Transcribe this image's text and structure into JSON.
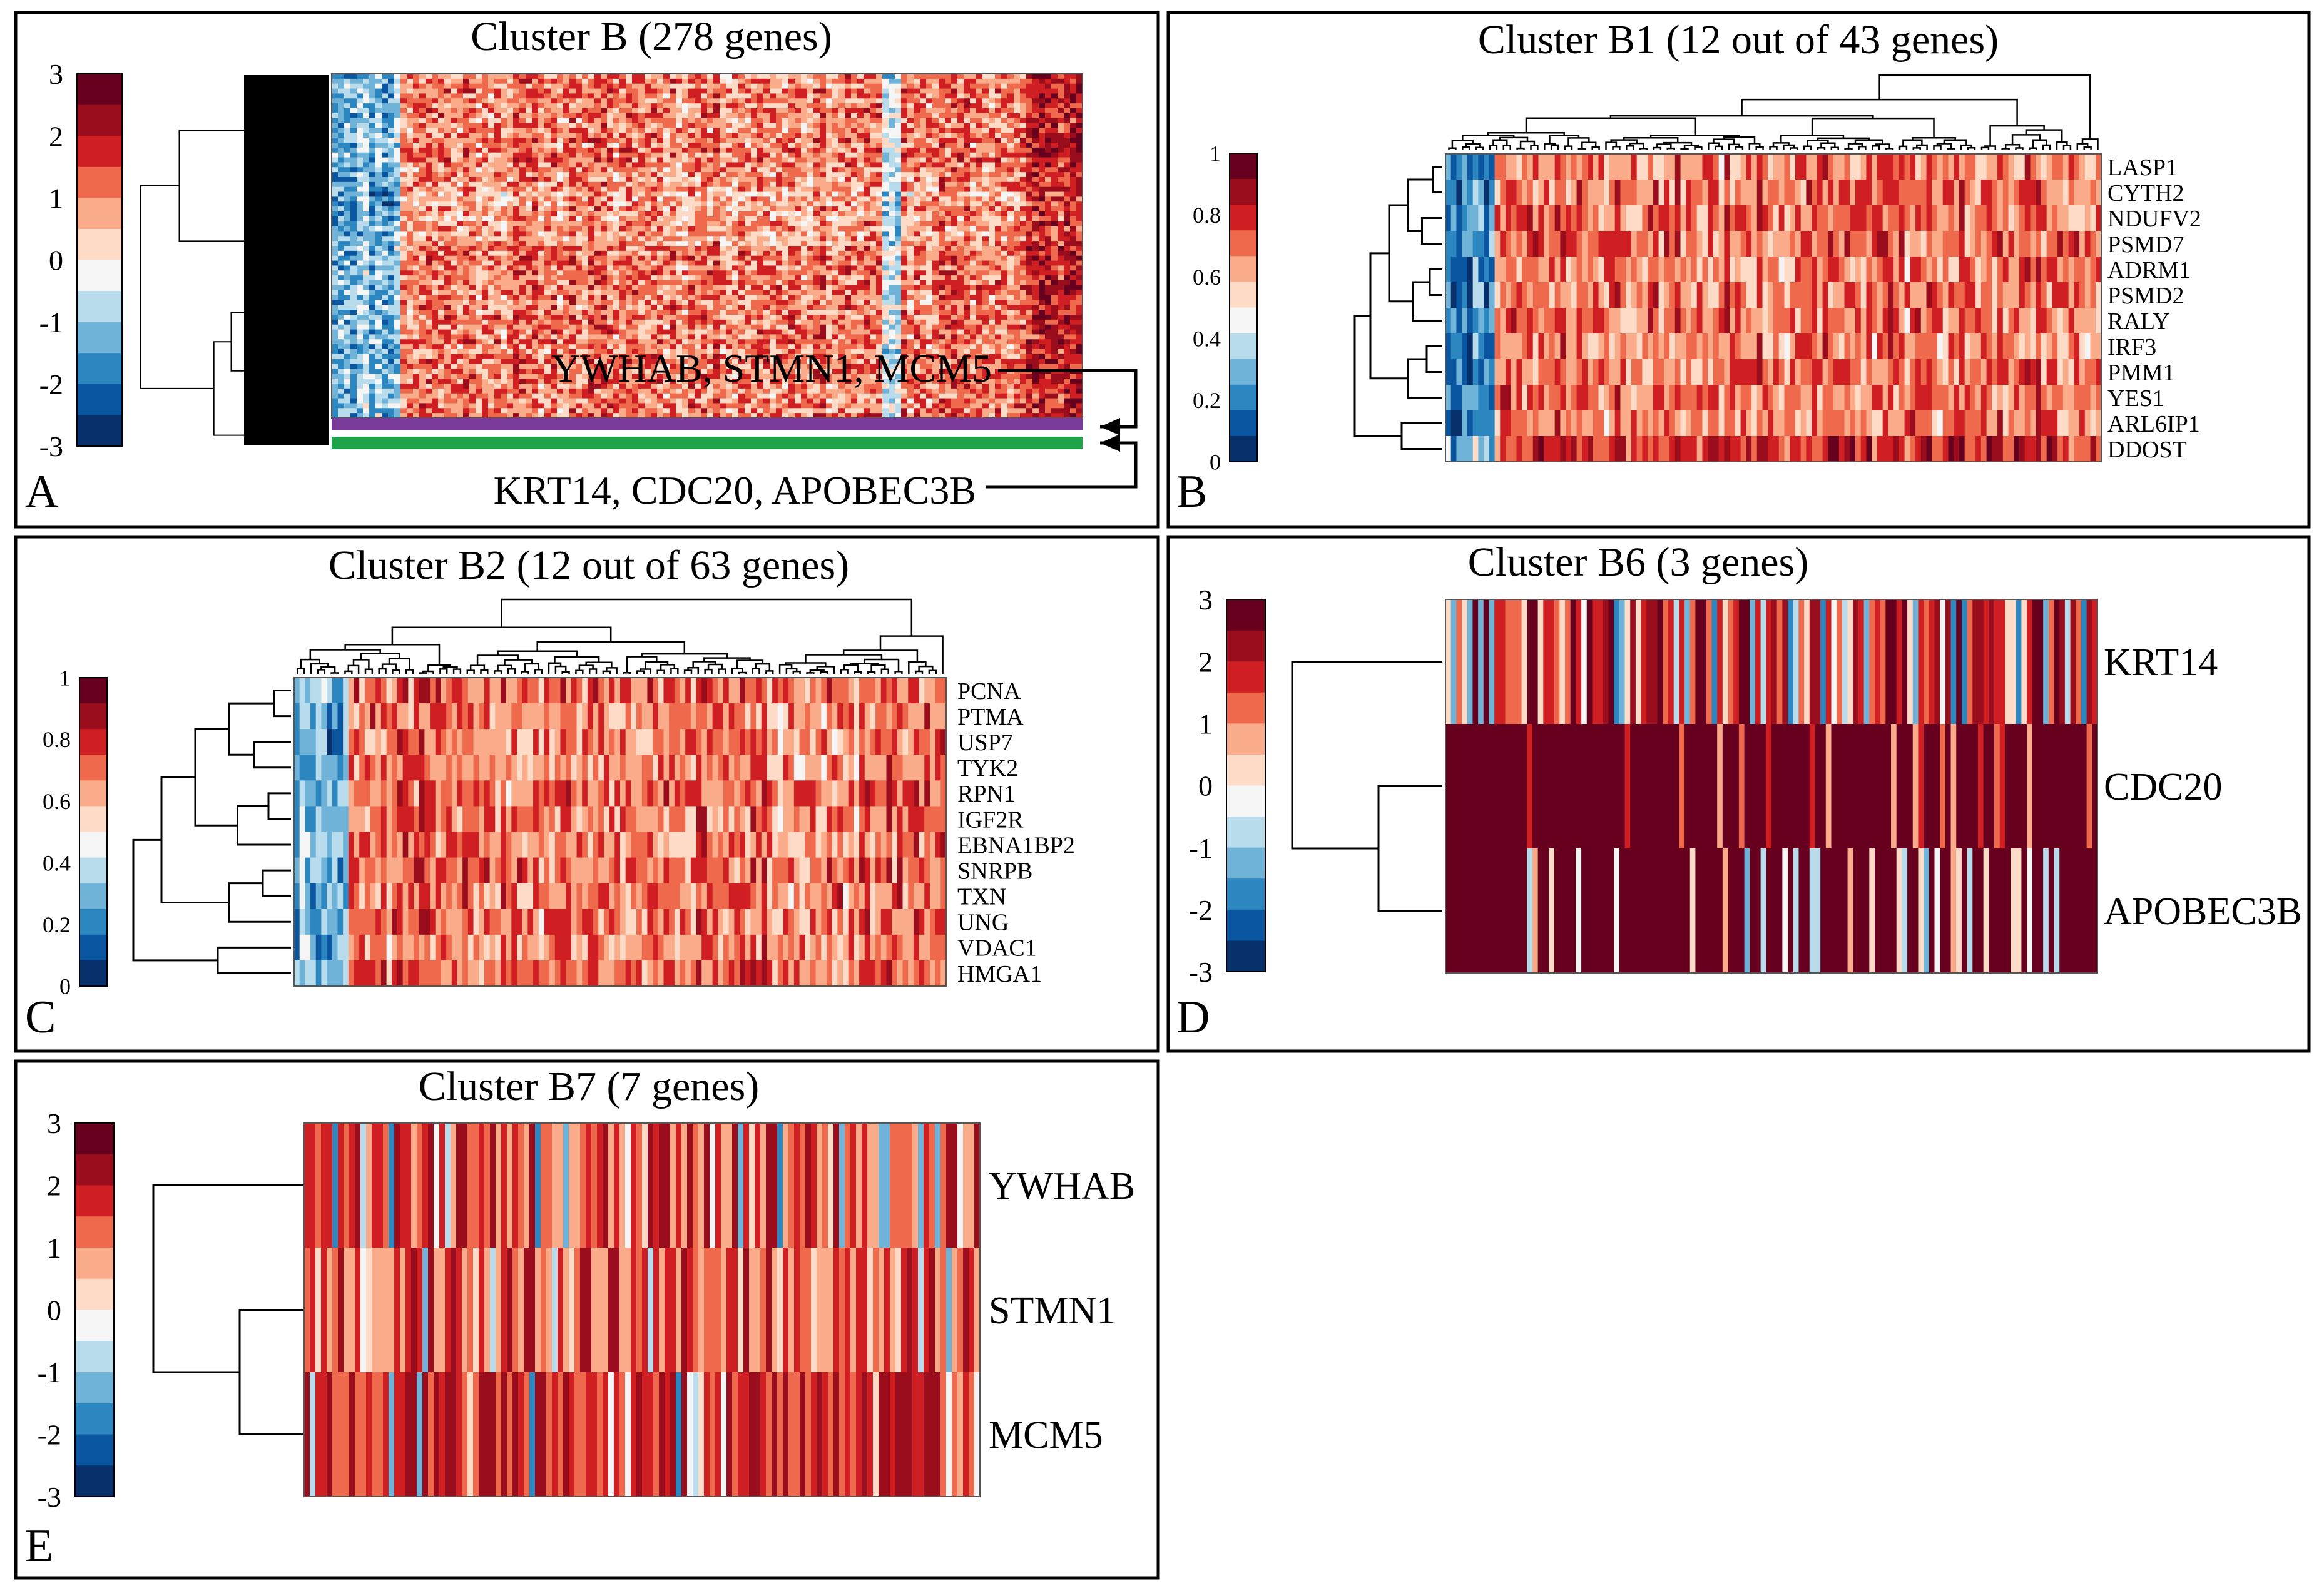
{
  "figure": {
    "background": "#ffffff"
  },
  "colormap": [
    "#08306b",
    "#0a56a0",
    "#2c86c0",
    "#6fb4d8",
    "#b9dcec",
    "#f5f5f5",
    "#fddbc7",
    "#f9ab8a",
    "#ef6a4c",
    "#cf1f22",
    "#9a0d1c",
    "#67001f"
  ],
  "chart_data": [
    {
      "panel": "A",
      "type": "heatmap",
      "title": "Cluster B (278 genes)",
      "colorbar": {
        "min": -3,
        "max": 3,
        "ticks": [
          "3",
          "2",
          "1",
          "0",
          "-1",
          "-2",
          "-3"
        ]
      },
      "rows": 278,
      "columns": 120,
      "row_labels": [],
      "annotations": [
        {
          "label": "YWHAB, STMN1, MCM5",
          "highlight_color": "#7a3b9a",
          "points_to": "Cluster B7"
        },
        {
          "label": "KRT14, CDC20, APOBEC3B",
          "highlight_color": "#1fa34a",
          "points_to": "Cluster B6"
        }
      ]
    },
    {
      "panel": "B",
      "type": "heatmap",
      "title": "Cluster B1 (12 out of 43 genes)",
      "colorbar": {
        "min": 0,
        "max": 1,
        "ticks": [
          "1",
          "0.8",
          "0.6",
          "0.4",
          "0.2",
          "0"
        ]
      },
      "columns": 120,
      "row_labels": [
        "LASP1",
        "CYTH2",
        "NDUFV2",
        "PSMD7",
        "ADRM1",
        "PSMD2",
        "RALY",
        "IRF3",
        "PMM1",
        "YES1",
        "ARL6IP1",
        "DDOST"
      ]
    },
    {
      "panel": "C",
      "type": "heatmap",
      "title": "Cluster B2 (12 out of 63 genes)",
      "colorbar": {
        "min": 0,
        "max": 1,
        "ticks": [
          "1",
          "0.8",
          "0.6",
          "0.4",
          "0.2",
          "0"
        ]
      },
      "columns": 120,
      "row_labels": [
        "PCNA",
        "PTMA",
        "USP7",
        "TYK2",
        "RPN1",
        "IGF2R",
        "EBNA1BP2",
        "SNRPB",
        "TXN",
        "UNG",
        "VDAC1",
        "HMGA1"
      ]
    },
    {
      "panel": "D",
      "type": "heatmap",
      "title": "Cluster B6 (3 genes)",
      "colorbar": {
        "min": -3,
        "max": 3,
        "ticks": [
          "3",
          "2",
          "1",
          "0",
          "-1",
          "-2",
          "-3"
        ]
      },
      "columns": 120,
      "row_labels": [
        "KRT14",
        "CDC20",
        "APOBEC3B"
      ]
    },
    {
      "panel": "E",
      "type": "heatmap",
      "title": "Cluster B7 (7 genes)",
      "colorbar": {
        "min": -3,
        "max": 3,
        "ticks": [
          "3",
          "2",
          "1",
          "0",
          "-1",
          "-2",
          "-3"
        ]
      },
      "columns": 120,
      "row_labels": [
        "YWHAB",
        "STMN1",
        "MCM5"
      ]
    }
  ]
}
